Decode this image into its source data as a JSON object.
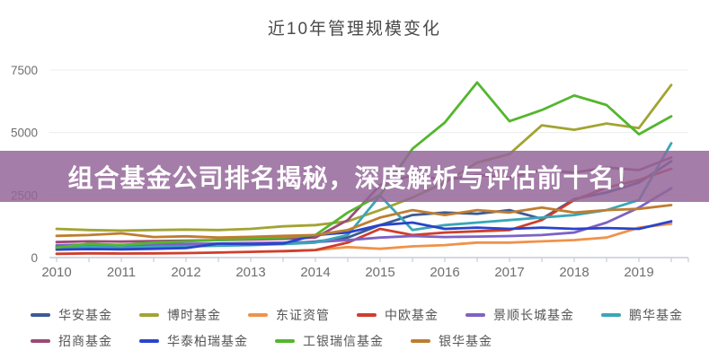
{
  "page": {
    "title": "近10年管理规模变化"
  },
  "banner": {
    "text": "组合基金公司排名揭秘，深度解析与评估前十名！",
    "bg": "rgba(148,102,153,0.85)",
    "text_color": "#ffffff"
  },
  "axis_style": {
    "grid_color": "#ececec",
    "axis_color": "#c6cbd4",
    "tick_label_color": "#6f6f6f"
  },
  "chart_data": {
    "type": "line",
    "title": "近10年管理规模变化",
    "grid": true,
    "legend_position": "bottom",
    "ylim": [
      0,
      7500
    ],
    "y_ticks": [
      0,
      2500,
      5000,
      7500
    ],
    "x_tick_labels": [
      "2010",
      "2011",
      "2012",
      "2013",
      "2014",
      "2015",
      "2016",
      "2017",
      "2018",
      "2019"
    ],
    "x": [
      2010,
      2010.5,
      2011,
      2011.5,
      2012,
      2012.5,
      2013,
      2013.5,
      2014,
      2014.5,
      2015,
      2015.5,
      2016,
      2016.5,
      2017,
      2017.5,
      2018,
      2018.5,
      2019,
      2019.5
    ],
    "series": [
      {
        "name": "华安基金",
        "color": "#3d5a96",
        "values": [
          430,
          450,
          440,
          460,
          480,
          500,
          530,
          560,
          640,
          800,
          1300,
          1700,
          1800,
          1750,
          1900,
          1550,
          2340,
          2600,
          3000,
          3850
        ]
      },
      {
        "name": "博时基金",
        "color": "#a2a433",
        "values": [
          1150,
          1100,
          1080,
          1100,
          1120,
          1100,
          1150,
          1250,
          1300,
          1450,
          1900,
          2400,
          3000,
          3800,
          4140,
          5290,
          5110,
          5360,
          5180,
          6900
        ]
      },
      {
        "name": "东证资管",
        "color": "#f0924b",
        "values": [
          null,
          null,
          null,
          null,
          null,
          null,
          null,
          250,
          300,
          420,
          350,
          450,
          500,
          600,
          600,
          650,
          700,
          800,
          1200,
          1350
        ]
      },
      {
        "name": "中欧基金",
        "color": "#cf3e2e",
        "values": [
          150,
          170,
          160,
          170,
          180,
          200,
          230,
          260,
          300,
          600,
          1150,
          900,
          1000,
          1050,
          1100,
          1500,
          2300,
          2800,
          3100,
          3550
        ]
      },
      {
        "name": "景顺长城基金",
        "color": "#7d62c4",
        "values": [
          500,
          520,
          510,
          530,
          550,
          560,
          580,
          600,
          620,
          700,
          800,
          860,
          820,
          840,
          860,
          900,
          1000,
          1400,
          2000,
          2770
        ]
      },
      {
        "name": "鹏华基金",
        "color": "#3aa6b8",
        "values": [
          380,
          420,
          400,
          430,
          450,
          470,
          500,
          540,
          600,
          900,
          2480,
          1100,
          1300,
          1400,
          1500,
          1600,
          1700,
          1900,
          2300,
          4570
        ]
      },
      {
        "name": "招商基金",
        "color": "#9c4a76",
        "values": [
          620,
          650,
          640,
          660,
          680,
          700,
          720,
          750,
          800,
          1500,
          2900,
          3300,
          3100,
          3300,
          3200,
          3500,
          3400,
          3600,
          3500,
          4000
        ]
      },
      {
        "name": "华泰柏瑞基金",
        "color": "#2944cc",
        "values": [
          320,
          340,
          330,
          350,
          380,
          560,
          540,
          560,
          900,
          1000,
          1300,
          1400,
          1150,
          1200,
          1150,
          1200,
          1150,
          1180,
          1150,
          1450
        ]
      },
      {
        "name": "工银瑞信基金",
        "color": "#54b62e",
        "values": [
          400,
          550,
          500,
          600,
          650,
          700,
          750,
          800,
          900,
          1800,
          2500,
          4350,
          5400,
          7000,
          5450,
          5900,
          6480,
          6100,
          4930,
          5650
        ]
      },
      {
        "name": "银华基金",
        "color": "#bf7d30",
        "values": [
          870,
          900,
          970,
          820,
          850,
          800,
          830,
          870,
          900,
          1100,
          1600,
          1900,
          1700,
          1900,
          1800,
          2000,
          1800,
          1900,
          1950,
          2100
        ]
      }
    ]
  }
}
